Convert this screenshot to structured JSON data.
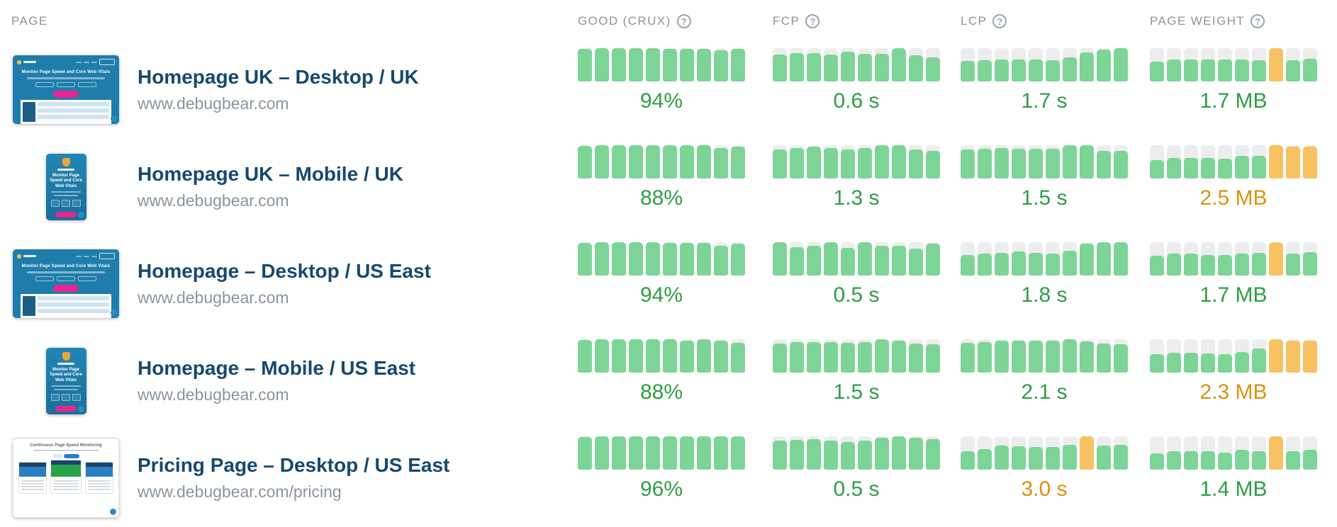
{
  "header": {
    "page_label": "PAGE",
    "help_icon": "?",
    "metrics": [
      {
        "key": "good",
        "label": "GOOD (CRUX)"
      },
      {
        "key": "fcp",
        "label": "FCP"
      },
      {
        "key": "lcp",
        "label": "LCP"
      },
      {
        "key": "weight",
        "label": "PAGE WEIGHT"
      }
    ]
  },
  "colors": {
    "barGreen": "#7dd497",
    "barOrange": "#f6c262",
    "track": "#ededed",
    "valGreen": "#2e9e44",
    "valOrange": "#dd9111",
    "titleNavy": "#16496d",
    "urlGray": "#8b959e",
    "headGray": "#8b949d",
    "thumbBlue": "#1f7dab",
    "pink": "#e5278f",
    "navy": "#174a6e"
  },
  "thumbnails": {
    "homepage_caption": "Monitor Page Speed and Core Web Vitals",
    "pricing_caption": "Continuous Page Speed Monitoring"
  },
  "rows": [
    {
      "title": "Homepage UK – Desktop / UK",
      "url": "www.debugbear.com",
      "thumbnail": "desktop-home",
      "metrics": {
        "good": {
          "value": "94%",
          "value_color": "green",
          "heights": [
            97,
            100,
            100,
            100,
            100,
            98,
            97,
            97,
            93,
            97
          ],
          "orange_bars": []
        },
        "fcp": {
          "value": "0.6 s",
          "value_color": "green",
          "heights": [
            80,
            85,
            85,
            80,
            90,
            83,
            83,
            100,
            78,
            72
          ],
          "orange_bars": []
        },
        "lcp": {
          "value": "1.7 s",
          "value_color": "green",
          "heights": [
            62,
            64,
            66,
            66,
            65,
            64,
            72,
            88,
            96,
            100
          ],
          "orange_bars": []
        },
        "weight": {
          "value": "1.7 MB",
          "value_color": "green",
          "heights": [
            60,
            66,
            66,
            66,
            66,
            66,
            64,
            100,
            64,
            68
          ],
          "orange_bars": [
            7
          ]
        }
      }
    },
    {
      "title": "Homepage UK – Mobile / UK",
      "url": "www.debugbear.com",
      "thumbnail": "mobile-home",
      "metrics": {
        "good": {
          "value": "88%",
          "value_color": "green",
          "heights": [
            97,
            100,
            100,
            100,
            100,
            100,
            100,
            100,
            92,
            95
          ],
          "orange_bars": []
        },
        "fcp": {
          "value": "1.3 s",
          "value_color": "green",
          "heights": [
            88,
            92,
            95,
            92,
            88,
            92,
            100,
            100,
            88,
            84
          ],
          "orange_bars": []
        },
        "lcp": {
          "value": "1.5 s",
          "value_color": "green",
          "heights": [
            88,
            90,
            92,
            90,
            90,
            90,
            100,
            100,
            84,
            84
          ],
          "orange_bars": []
        },
        "weight": {
          "value": "2.5 MB",
          "value_color": "orange",
          "heights": [
            55,
            62,
            62,
            62,
            60,
            68,
            68,
            100,
            95,
            95
          ],
          "orange_bars": [
            7,
            8,
            9
          ]
        }
      }
    },
    {
      "title": "Homepage – Desktop / US East",
      "url": "www.debugbear.com",
      "thumbnail": "desktop-home",
      "metrics": {
        "good": {
          "value": "94%",
          "value_color": "green",
          "heights": [
            97,
            100,
            100,
            100,
            100,
            98,
            97,
            97,
            90,
            96
          ],
          "orange_bars": []
        },
        "fcp": {
          "value": "0.5 s",
          "value_color": "green",
          "heights": [
            100,
            86,
            90,
            100,
            84,
            100,
            90,
            90,
            80,
            95
          ],
          "orange_bars": []
        },
        "lcp": {
          "value": "1.8 s",
          "value_color": "green",
          "heights": [
            62,
            65,
            68,
            72,
            68,
            65,
            75,
            95,
            100,
            100
          ],
          "orange_bars": []
        },
        "weight": {
          "value": "1.7 MB",
          "value_color": "green",
          "heights": [
            60,
            65,
            65,
            62,
            62,
            65,
            68,
            100,
            65,
            70
          ],
          "orange_bars": [
            7
          ]
        }
      }
    },
    {
      "title": "Homepage – Mobile / US East",
      "url": "www.debugbear.com",
      "thumbnail": "mobile-home",
      "metrics": {
        "good": {
          "value": "88%",
          "value_color": "green",
          "heights": [
            97,
            100,
            100,
            100,
            100,
            100,
            95,
            100,
            95,
            90
          ],
          "orange_bars": []
        },
        "fcp": {
          "value": "1.5 s",
          "value_color": "green",
          "heights": [
            88,
            92,
            92,
            92,
            90,
            92,
            100,
            95,
            88,
            85
          ],
          "orange_bars": []
        },
        "lcp": {
          "value": "2.1 s",
          "value_color": "green",
          "heights": [
            90,
            92,
            95,
            95,
            95,
            95,
            100,
            93,
            88,
            85
          ],
          "orange_bars": []
        },
        "weight": {
          "value": "2.3 MB",
          "value_color": "orange",
          "heights": [
            55,
            60,
            60,
            58,
            55,
            62,
            72,
            100,
            95,
            95
          ],
          "orange_bars": [
            7,
            8,
            9
          ]
        }
      }
    },
    {
      "title": "Pricing Page – Desktop / US East",
      "url": "www.debugbear.com/pricing",
      "thumbnail": "pricing-desktop",
      "metrics": {
        "good": {
          "value": "96%",
          "value_color": "green",
          "heights": [
            98,
            100,
            100,
            100,
            100,
            100,
            100,
            100,
            100,
            100
          ],
          "orange_bars": []
        },
        "fcp": {
          "value": "0.5 s",
          "value_color": "green",
          "heights": [
            88,
            90,
            92,
            88,
            82,
            88,
            95,
            100,
            95,
            92
          ],
          "orange_bars": []
        },
        "lcp": {
          "value": "3.0 s",
          "value_color": "orange",
          "heights": [
            55,
            62,
            72,
            70,
            68,
            68,
            75,
            100,
            72,
            75
          ],
          "orange_bars": [
            7
          ]
        },
        "weight": {
          "value": "1.4 MB",
          "value_color": "green",
          "heights": [
            50,
            55,
            55,
            55,
            52,
            60,
            55,
            100,
            55,
            60
          ],
          "orange_bars": [
            7
          ]
        }
      }
    }
  ]
}
